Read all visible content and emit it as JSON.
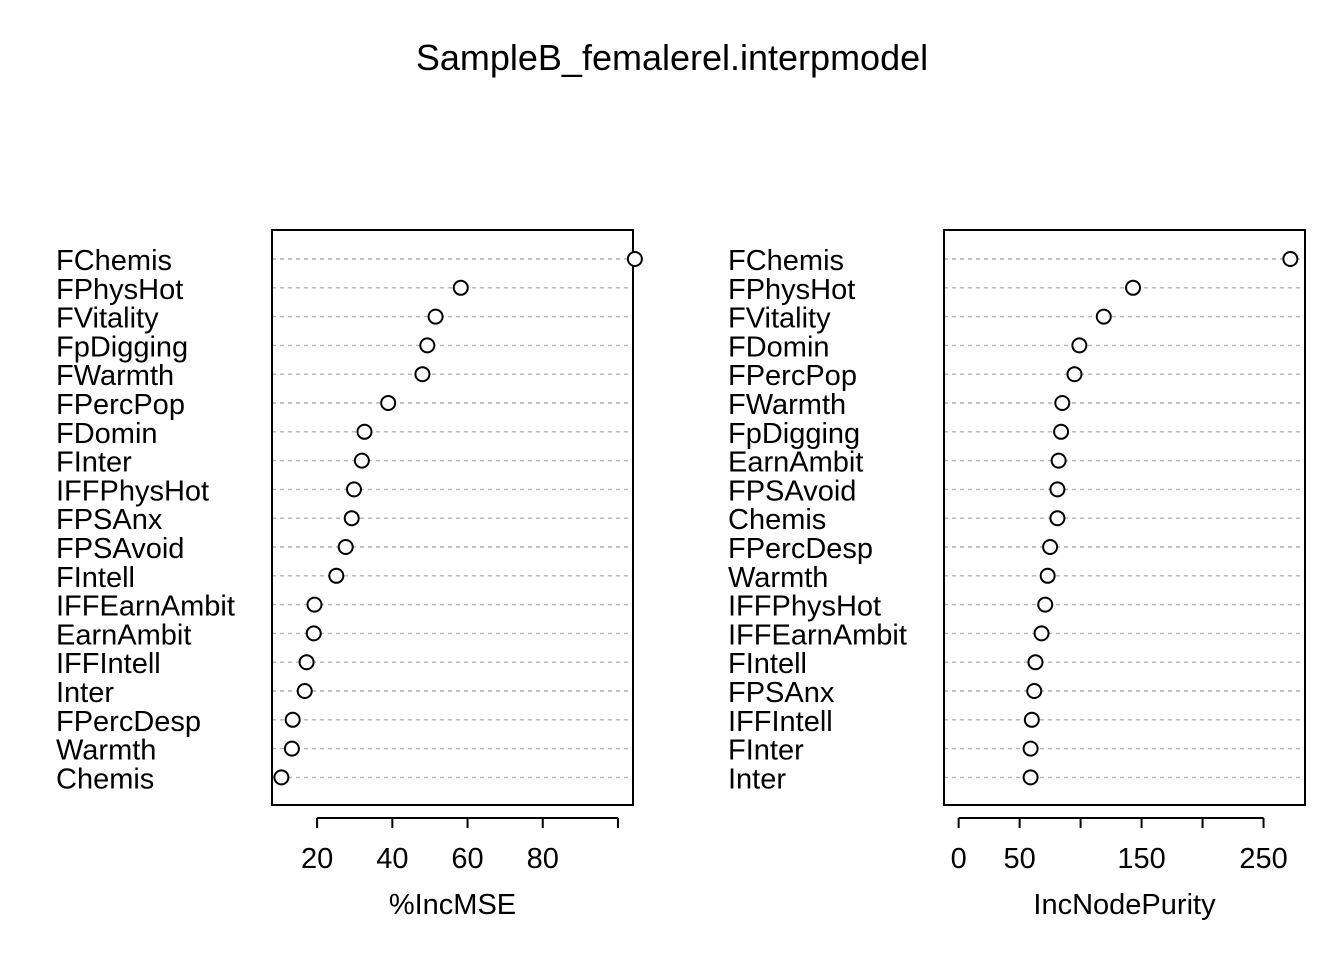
{
  "title": "SampleB_femalerel.interpmodel",
  "chart_data": [
    {
      "type": "scatter",
      "subtype": "dotchart",
      "xlabel": "%IncMSE",
      "ylabel": "",
      "xlim": [
        8,
        104
      ],
      "xticks": [
        20,
        40,
        60,
        80,
        100
      ],
      "xtick_labels": [
        "20",
        "40",
        "60",
        "80",
        ""
      ],
      "grid": "dashed horizontal lines per row",
      "categories": [
        "FChemis",
        "FPhysHot",
        "FVitality",
        "FpDigging",
        "FWarmth",
        "FPercPop",
        "FDomin",
        "FInter",
        "IFFPhysHot",
        "FPSAnx",
        "FPSAvoid",
        "FIntell",
        "IFFEarnAmbit",
        "EarnAmbit",
        "IFFIntell",
        "Inter",
        "FPercDesp",
        "Warmth",
        "Chemis"
      ],
      "values": [
        104.5,
        58.2,
        51.5,
        49.3,
        48.0,
        38.9,
        32.6,
        31.9,
        29.8,
        29.2,
        27.6,
        25.1,
        19.3,
        19.1,
        17.2,
        16.7,
        13.5,
        13.3,
        10.5
      ]
    },
    {
      "type": "scatter",
      "subtype": "dotchart",
      "xlabel": "IncNodePurity",
      "ylabel": "",
      "xlim": [
        -12,
        284
      ],
      "xticks": [
        0,
        50,
        100,
        150,
        200,
        250
      ],
      "xtick_labels": [
        "0",
        "50",
        "",
        "150",
        "",
        "250"
      ],
      "grid": "dashed horizontal lines per row",
      "categories": [
        "FChemis",
        "FPhysHot",
        "FVitality",
        "FDomin",
        "FPercPop",
        "FWarmth",
        "FpDigging",
        "EarnAmbit",
        "FPSAvoid",
        "Chemis",
        "FPercDesp",
        "Warmth",
        "IFFPhysHot",
        "IFFEarnAmbit",
        "FIntell",
        "FPSAnx",
        "IFFIntell",
        "FInter",
        "Inter"
      ],
      "values": [
        272,
        143,
        119,
        99,
        95,
        85,
        84,
        82,
        81,
        81,
        75,
        73,
        71,
        68,
        63,
        62,
        60,
        59,
        59
      ]
    }
  ]
}
